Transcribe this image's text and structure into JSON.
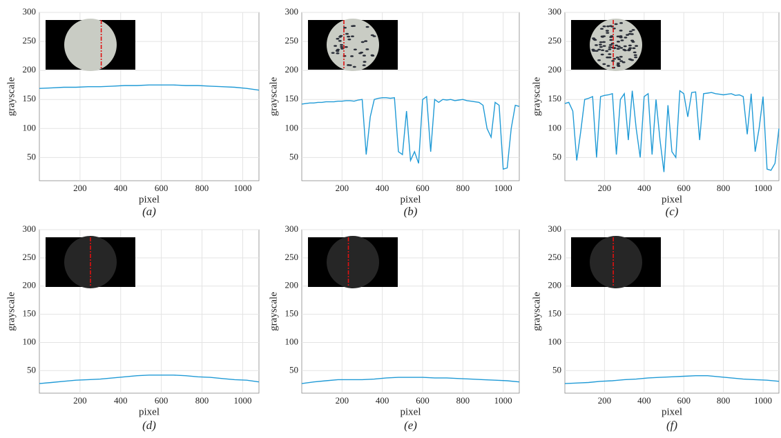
{
  "chart_data": [
    {
      "type": "line",
      "caption": "(a)",
      "xlabel": "pixel",
      "ylabel": "grayscale",
      "xlim": [
        0,
        1080
      ],
      "ylim": [
        10,
        300
      ],
      "xticks": [
        200,
        400,
        600,
        800,
        1000
      ],
      "yticks": [
        50,
        100,
        150,
        200,
        250,
        300
      ],
      "grid": true,
      "x": [
        0,
        60,
        120,
        180,
        240,
        300,
        360,
        420,
        480,
        540,
        600,
        660,
        720,
        780,
        840,
        900,
        960,
        1020,
        1080
      ],
      "series": [
        {
          "color": "#1f9ad6",
          "values": [
            169,
            170,
            171,
            171,
            172,
            172,
            173,
            174,
            174,
            175,
            175,
            175,
            174,
            174,
            173,
            172,
            171,
            169,
            166
          ]
        }
      ]
    },
    {
      "type": "line",
      "caption": "(b)",
      "xlabel": "pixel",
      "ylabel": "grayscale",
      "xlim": [
        0,
        1080
      ],
      "ylim": [
        10,
        300
      ],
      "xticks": [
        200,
        400,
        600,
        800,
        1000
      ],
      "yticks": [
        50,
        100,
        150,
        200,
        250,
        300
      ],
      "grid": true,
      "x": [
        0,
        20,
        40,
        60,
        80,
        100,
        120,
        140,
        160,
        180,
        200,
        220,
        240,
        260,
        280,
        300,
        320,
        340,
        360,
        380,
        400,
        420,
        440,
        460,
        480,
        500,
        520,
        540,
        560,
        580,
        600,
        620,
        640,
        660,
        680,
        700,
        720,
        740,
        760,
        780,
        800,
        820,
        840,
        860,
        880,
        900,
        920,
        940,
        960,
        980,
        1000,
        1020,
        1040,
        1060,
        1080
      ],
      "series": [
        {
          "color": "#1f9ad6",
          "values": [
            142,
            143,
            144,
            144,
            145,
            145,
            146,
            146,
            146,
            147,
            147,
            148,
            148,
            147,
            149,
            150,
            55,
            120,
            150,
            152,
            153,
            153,
            152,
            153,
            60,
            55,
            130,
            45,
            60,
            40,
            150,
            155,
            60,
            150,
            145,
            150,
            149,
            150,
            148,
            149,
            150,
            148,
            147,
            146,
            145,
            140,
            100,
            85,
            145,
            140,
            30,
            32,
            100,
            140,
            138
          ]
        }
      ]
    },
    {
      "type": "line",
      "caption": "(c)",
      "xlabel": "pixel",
      "ylabel": "grayscale",
      "xlim": [
        0,
        1080
      ],
      "ylim": [
        10,
        300
      ],
      "xticks": [
        200,
        400,
        600,
        800,
        1000
      ],
      "yticks": [
        50,
        100,
        150,
        200,
        250,
        300
      ],
      "grid": true,
      "x": [
        0,
        20,
        40,
        60,
        80,
        100,
        120,
        140,
        160,
        180,
        200,
        220,
        240,
        260,
        280,
        300,
        320,
        340,
        360,
        380,
        400,
        420,
        440,
        460,
        480,
        500,
        520,
        540,
        560,
        580,
        600,
        620,
        640,
        660,
        680,
        700,
        720,
        740,
        760,
        780,
        800,
        820,
        840,
        860,
        880,
        900,
        920,
        940,
        960,
        980,
        1000,
        1020,
        1040,
        1060,
        1080
      ],
      "series": [
        {
          "color": "#1f9ad6",
          "values": [
            143,
            145,
            130,
            45,
            95,
            150,
            152,
            155,
            50,
            155,
            157,
            158,
            160,
            55,
            150,
            160,
            80,
            165,
            100,
            50,
            155,
            160,
            55,
            150,
            80,
            25,
            140,
            60,
            50,
            165,
            160,
            120,
            162,
            163,
            80,
            160,
            161,
            162,
            160,
            159,
            158,
            159,
            160,
            157,
            158,
            155,
            90,
            160,
            60,
            100,
            155,
            30,
            28,
            40,
            100
          ]
        }
      ]
    },
    {
      "type": "line",
      "caption": "(d)",
      "xlabel": "pixel",
      "ylabel": "grayscale",
      "xlim": [
        0,
        1080
      ],
      "ylim": [
        10,
        300
      ],
      "xticks": [
        200,
        400,
        600,
        800,
        1000
      ],
      "yticks": [
        50,
        100,
        150,
        200,
        250,
        300
      ],
      "grid": true,
      "x": [
        0,
        60,
        120,
        180,
        240,
        300,
        360,
        420,
        480,
        540,
        600,
        660,
        720,
        780,
        840,
        900,
        960,
        1020,
        1080
      ],
      "series": [
        {
          "color": "#1f9ad6",
          "values": [
            27,
            29,
            31,
            33,
            34,
            35,
            37,
            39,
            41,
            42,
            42,
            42,
            41,
            39,
            38,
            36,
            34,
            33,
            30
          ]
        }
      ]
    },
    {
      "type": "line",
      "caption": "(e)",
      "xlabel": "pixel",
      "ylabel": "grayscale",
      "xlim": [
        0,
        1080
      ],
      "ylim": [
        10,
        300
      ],
      "xticks": [
        200,
        400,
        600,
        800,
        1000
      ],
      "yticks": [
        50,
        100,
        150,
        200,
        250,
        300
      ],
      "grid": true,
      "x": [
        0,
        60,
        120,
        180,
        240,
        300,
        360,
        420,
        480,
        540,
        600,
        660,
        720,
        780,
        840,
        900,
        960,
        1020,
        1080
      ],
      "series": [
        {
          "color": "#1f9ad6",
          "values": [
            27,
            30,
            32,
            34,
            34,
            34,
            35,
            37,
            38,
            38,
            38,
            37,
            37,
            36,
            35,
            34,
            33,
            32,
            30
          ]
        }
      ]
    },
    {
      "type": "line",
      "caption": "(f)",
      "xlabel": "pixel",
      "ylabel": "grayscale",
      "xlim": [
        0,
        1080
      ],
      "ylim": [
        10,
        300
      ],
      "xticks": [
        200,
        400,
        600,
        800,
        1000
      ],
      "yticks": [
        50,
        100,
        150,
        200,
        250,
        300
      ],
      "grid": true,
      "x": [
        0,
        60,
        120,
        180,
        240,
        300,
        360,
        420,
        480,
        540,
        600,
        660,
        720,
        780,
        840,
        900,
        960,
        1020,
        1080
      ],
      "series": [
        {
          "color": "#1f9ad6",
          "values": [
            27,
            28,
            29,
            31,
            32,
            34,
            35,
            37,
            38,
            39,
            40,
            41,
            41,
            39,
            37,
            35,
            34,
            33,
            31
          ]
        }
      ]
    }
  ]
}
